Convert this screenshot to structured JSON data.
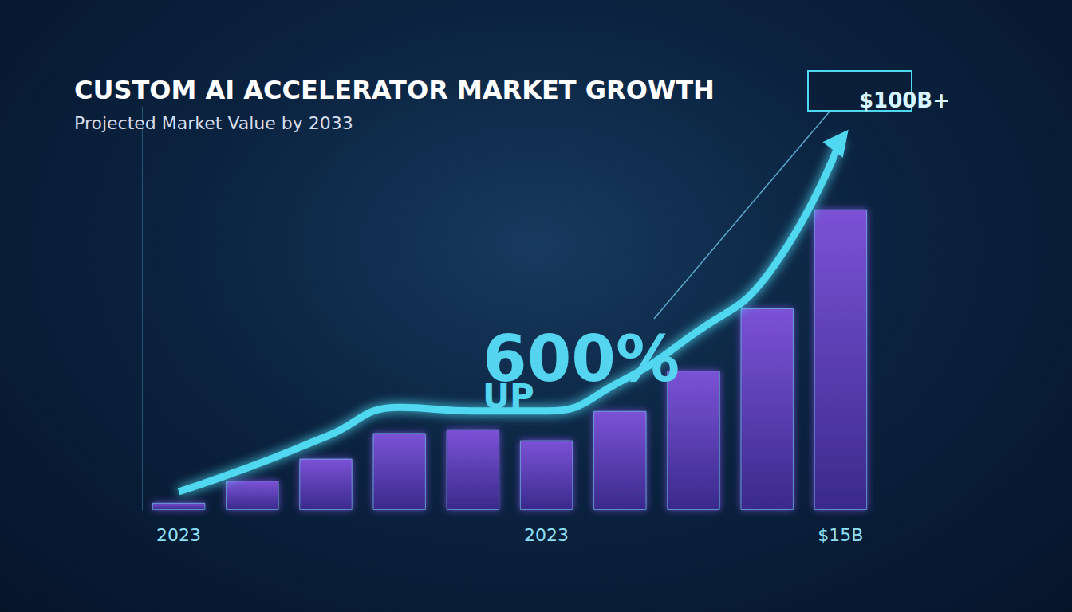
{
  "chart_data": {
    "type": "bar",
    "title": "CUSTOM AI ACCELERATOR MARKET GROWTH",
    "subtitle": "Projected Market Value by 2033",
    "categories": [
      "2023",
      null,
      null,
      null,
      null,
      "2023",
      null,
      null,
      null,
      "$15B"
    ],
    "series": [
      {
        "type": "bar",
        "color": "#6a48c8",
        "values": [
          2,
          8,
          14,
          21,
          22,
          19,
          27,
          38,
          55,
          82
        ]
      },
      {
        "type": "line",
        "color": "#4fd8f0",
        "values": [
          5,
          12,
          20,
          28,
          27,
          27,
          35,
          48,
          64,
          101
        ]
      }
    ],
    "annotations": [
      "$100B+",
      "600%",
      "UP"
    ],
    "ylim": [
      0,
      110
    ],
    "tick_labels": "x",
    "grid": false
  }
}
